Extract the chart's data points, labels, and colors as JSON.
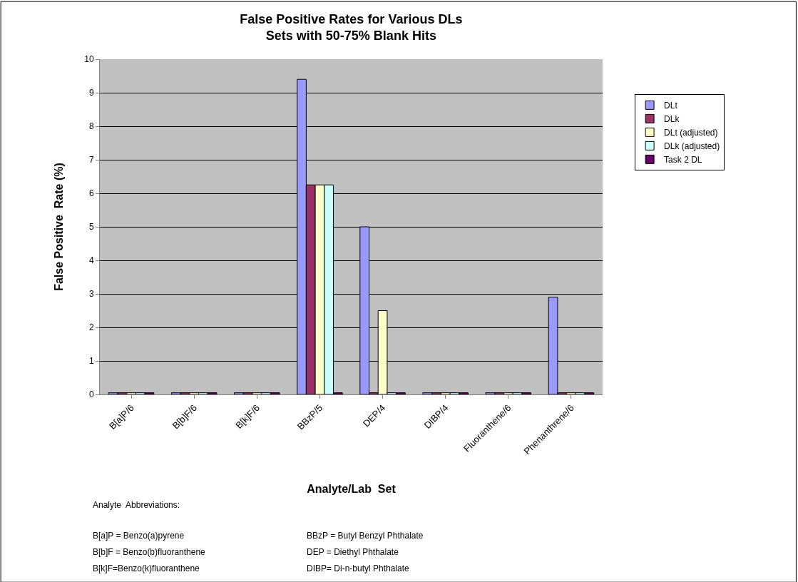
{
  "chart_data": {
    "type": "bar",
    "title": "False Positive Rates for Various DLs\nSets with 50-75% Blank Hits",
    "xlabel": "Analyte/Lab  Set",
    "ylabel": "False Positive  Rate (%)",
    "categories": [
      "B[a]P/6",
      "B[b]F/6",
      "B[k]F/6",
      "BBzP/5",
      "DEP/4",
      "DIBP/4",
      "Fluoranthene/6",
      "Phenanthrene/6"
    ],
    "series": [
      {
        "name": "DLt",
        "color": "#9999ff",
        "values": [
          0.05,
          0.05,
          0.05,
          9.4,
          5,
          0.05,
          0.05,
          2.9
        ]
      },
      {
        "name": "DLk",
        "color": "#993366",
        "values": [
          0.05,
          0.05,
          0.05,
          6.25,
          0.05,
          0.05,
          0.05,
          0.05
        ]
      },
      {
        "name": "DLt (adjusted)",
        "color": "#ffffcc",
        "values": [
          0.05,
          0.05,
          0.05,
          6.25,
          2.5,
          0.05,
          0.05,
          0.05
        ]
      },
      {
        "name": "DLk (adjusted)",
        "color": "#ccffff",
        "values": [
          0.05,
          0.05,
          0.05,
          6.25,
          0.05,
          0.05,
          0.05,
          0.05
        ]
      },
      {
        "name": "Task 2 DL",
        "color": "#660066",
        "values": [
          0.05,
          0.05,
          0.05,
          0.05,
          0.05,
          0.05,
          0.05,
          0.05
        ]
      }
    ],
    "ylim": [
      0,
      10
    ],
    "yticks": [
      0,
      1,
      2,
      3,
      4,
      5,
      6,
      7,
      8,
      9,
      10
    ],
    "grid": "y",
    "legend": "right",
    "annotations": [
      "Analyte  Abbreviations:",
      "B[a]P = Benzo(a)pyrene",
      "B[b]F = Benzo(b)fluoranthene",
      "B[k]F=Benzo(k)fluoranthene",
      "BBzP = Butyl Benzyl Phthalate",
      "DEP = Diethyl Phthalate",
      "DIBP= Di-n-butyl Phthalate"
    ]
  }
}
